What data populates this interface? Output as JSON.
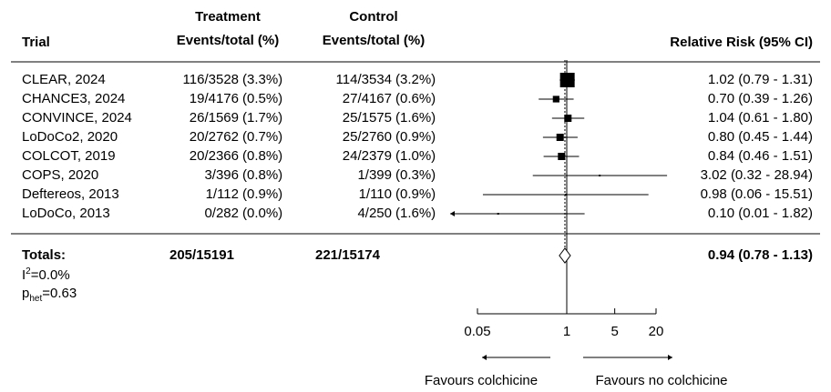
{
  "headers": {
    "trial": "Trial",
    "treatment_line1": "Treatment",
    "treatment_line2": "Events/total (%)",
    "control_line1": "Control",
    "control_line2": "Events/total (%)",
    "rr": "Relative Risk (95% CI)"
  },
  "rows": [
    {
      "trial": "CLEAR, 2024",
      "treatment": "116/3528",
      "treatment_pct": "(3.3%)",
      "control": "114/3534",
      "control_pct": "(3.2%)",
      "rr_text": "1.02 (0.79 - 1.31)"
    },
    {
      "trial": "CHANCE3, 2024",
      "treatment": "19/4176",
      "treatment_pct": "(0.5%)",
      "control": "27/4167",
      "control_pct": "(0.6%)",
      "rr_text": "0.70 (0.39 - 1.26)"
    },
    {
      "trial": "CONVINCE, 2024",
      "treatment": "26/1569",
      "treatment_pct": "(1.7%)",
      "control": "25/1575",
      "control_pct": "(1.6%)",
      "rr_text": "1.04 (0.61 - 1.80)"
    },
    {
      "trial": "LoDoCo2, 2020",
      "treatment": "20/2762",
      "treatment_pct": "(0.7%)",
      "control": "25/2760",
      "control_pct": "(0.9%)",
      "rr_text": "0.80 (0.45 - 1.44)"
    },
    {
      "trial": "COLCOT, 2019",
      "treatment": "20/2366",
      "treatment_pct": "(0.8%)",
      "control": "24/2379",
      "control_pct": "(1.0%)",
      "rr_text": "0.84 (0.46 - 1.51)"
    },
    {
      "trial": "COPS, 2020",
      "treatment": "3/396",
      "treatment_pct": "(0.8%)",
      "control": "1/399",
      "control_pct": "(0.3%)",
      "rr_text": "3.02 (0.32 - 28.94)"
    },
    {
      "trial": "Deftereos, 2013",
      "treatment": "1/112",
      "treatment_pct": "(0.9%)",
      "control": "1/110",
      "control_pct": "(0.9%)",
      "rr_text": "0.98 (0.06 - 15.51)"
    },
    {
      "trial": "LoDoCo, 2013",
      "treatment": "0/282",
      "treatment_pct": "(0.0%)",
      "control": "4/250",
      "control_pct": "(1.6%)",
      "rr_text": "0.10 (0.01 - 1.82)"
    }
  ],
  "totals": {
    "label": "Totals:",
    "treatment": "205/15191",
    "control": "221/15174",
    "rr_text": "0.94 (0.78 - 1.13)"
  },
  "heterogeneity": {
    "i2_base": "I",
    "i2_sup": "2",
    "i2_value": "=0.0%",
    "p_base": "p",
    "p_sub": "het",
    "p_value": "=0.63"
  },
  "chart_data": {
    "type": "forest",
    "x_scale": "log",
    "xlim": [
      0.03,
      21
    ],
    "ticks": [
      0.05,
      1,
      5,
      20
    ],
    "tick_labels": [
      "0.05",
      "1",
      "5",
      "20"
    ],
    "reference_line": 1,
    "pooled_line": 0.94,
    "favours_left": "Favours colchicine",
    "favours_right": "Favours no colchicine",
    "studies": [
      {
        "name": "CLEAR, 2024",
        "rr": 1.02,
        "lo": 0.79,
        "hi": 1.31,
        "weight": 1.0
      },
      {
        "name": "CHANCE3, 2024",
        "rr": 0.7,
        "lo": 0.39,
        "hi": 1.26,
        "weight": 0.45
      },
      {
        "name": "CONVINCE, 2024",
        "rr": 1.04,
        "lo": 0.61,
        "hi": 1.8,
        "weight": 0.5
      },
      {
        "name": "LoDoCo2, 2020",
        "rr": 0.8,
        "lo": 0.45,
        "hi": 1.44,
        "weight": 0.5
      },
      {
        "name": "COLCOT, 2019",
        "rr": 0.84,
        "lo": 0.46,
        "hi": 1.51,
        "weight": 0.5
      },
      {
        "name": "COPS, 2020",
        "rr": 3.02,
        "lo": 0.32,
        "hi": 28.94,
        "weight": 0.12
      },
      {
        "name": "Deftereos, 2013",
        "rr": 0.98,
        "lo": 0.06,
        "hi": 15.51,
        "weight": 0.1
      },
      {
        "name": "LoDoCo, 2013",
        "rr": 0.1,
        "lo": 0.01,
        "hi": 1.82,
        "weight": 0.1
      }
    ],
    "pooled": {
      "rr": 0.94,
      "lo": 0.78,
      "hi": 1.13
    }
  }
}
